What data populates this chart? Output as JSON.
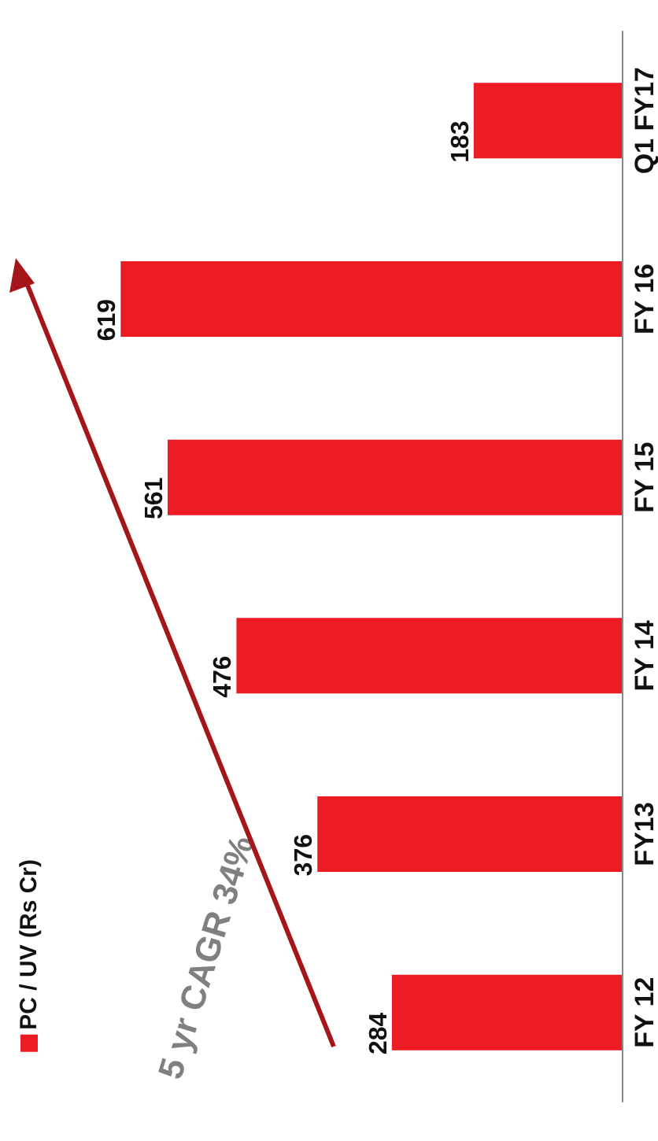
{
  "chart_data": {
    "type": "bar",
    "orientation": "horizontal",
    "categories": [
      "Q1 FY17",
      "FY 16",
      "FY 15",
      "FY 14",
      "FY13",
      "FY 12"
    ],
    "series": [
      {
        "name": "PC / UV (Rs Cr)",
        "color": "#ed1c24",
        "values": [
          183,
          619,
          561,
          476,
          376,
          284
        ]
      }
    ],
    "data_labels": true,
    "legend": "bottom left",
    "annotations": [
      "5 yr CAGR 34%"
    ]
  }
}
